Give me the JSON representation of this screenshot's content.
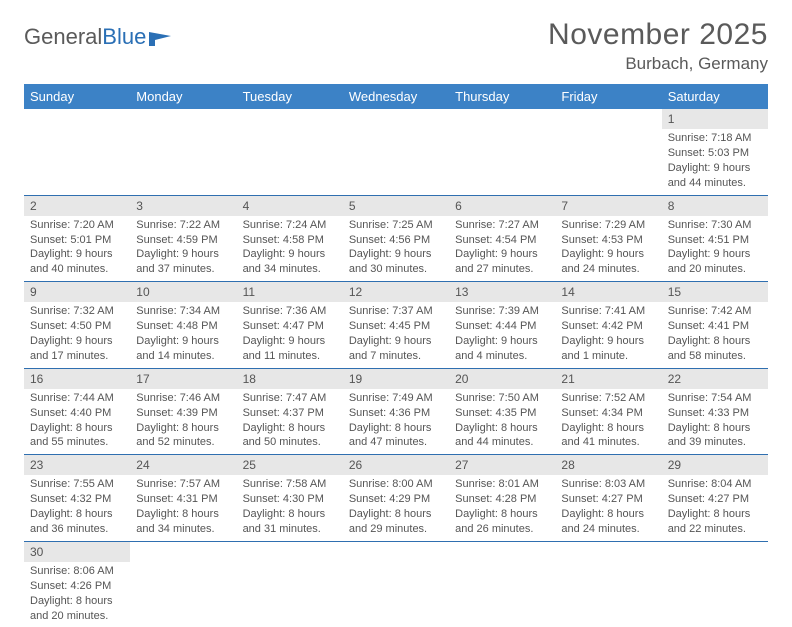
{
  "logo": {
    "text1": "General",
    "text2": "Blue"
  },
  "title": "November 2025",
  "subtitle": "Burbach, Germany",
  "colors": {
    "header_bg": "#3c82c6",
    "header_text": "#ffffff",
    "daynum_bg": "#e7e7e7",
    "row_border": "#2f6fb0",
    "text": "#555555",
    "logo_blue": "#2a6fb5"
  },
  "weekdays": [
    "Sunday",
    "Monday",
    "Tuesday",
    "Wednesday",
    "Thursday",
    "Friday",
    "Saturday"
  ],
  "weeks": [
    {
      "days": [
        null,
        null,
        null,
        null,
        null,
        null,
        {
          "num": "1",
          "sunrise": "Sunrise: 7:18 AM",
          "sunset": "Sunset: 5:03 PM",
          "day1": "Daylight: 9 hours",
          "day2": "and 44 minutes."
        }
      ]
    },
    {
      "days": [
        {
          "num": "2",
          "sunrise": "Sunrise: 7:20 AM",
          "sunset": "Sunset: 5:01 PM",
          "day1": "Daylight: 9 hours",
          "day2": "and 40 minutes."
        },
        {
          "num": "3",
          "sunrise": "Sunrise: 7:22 AM",
          "sunset": "Sunset: 4:59 PM",
          "day1": "Daylight: 9 hours",
          "day2": "and 37 minutes."
        },
        {
          "num": "4",
          "sunrise": "Sunrise: 7:24 AM",
          "sunset": "Sunset: 4:58 PM",
          "day1": "Daylight: 9 hours",
          "day2": "and 34 minutes."
        },
        {
          "num": "5",
          "sunrise": "Sunrise: 7:25 AM",
          "sunset": "Sunset: 4:56 PM",
          "day1": "Daylight: 9 hours",
          "day2": "and 30 minutes."
        },
        {
          "num": "6",
          "sunrise": "Sunrise: 7:27 AM",
          "sunset": "Sunset: 4:54 PM",
          "day1": "Daylight: 9 hours",
          "day2": "and 27 minutes."
        },
        {
          "num": "7",
          "sunrise": "Sunrise: 7:29 AM",
          "sunset": "Sunset: 4:53 PM",
          "day1": "Daylight: 9 hours",
          "day2": "and 24 minutes."
        },
        {
          "num": "8",
          "sunrise": "Sunrise: 7:30 AM",
          "sunset": "Sunset: 4:51 PM",
          "day1": "Daylight: 9 hours",
          "day2": "and 20 minutes."
        }
      ]
    },
    {
      "days": [
        {
          "num": "9",
          "sunrise": "Sunrise: 7:32 AM",
          "sunset": "Sunset: 4:50 PM",
          "day1": "Daylight: 9 hours",
          "day2": "and 17 minutes."
        },
        {
          "num": "10",
          "sunrise": "Sunrise: 7:34 AM",
          "sunset": "Sunset: 4:48 PM",
          "day1": "Daylight: 9 hours",
          "day2": "and 14 minutes."
        },
        {
          "num": "11",
          "sunrise": "Sunrise: 7:36 AM",
          "sunset": "Sunset: 4:47 PM",
          "day1": "Daylight: 9 hours",
          "day2": "and 11 minutes."
        },
        {
          "num": "12",
          "sunrise": "Sunrise: 7:37 AM",
          "sunset": "Sunset: 4:45 PM",
          "day1": "Daylight: 9 hours",
          "day2": "and 7 minutes."
        },
        {
          "num": "13",
          "sunrise": "Sunrise: 7:39 AM",
          "sunset": "Sunset: 4:44 PM",
          "day1": "Daylight: 9 hours",
          "day2": "and 4 minutes."
        },
        {
          "num": "14",
          "sunrise": "Sunrise: 7:41 AM",
          "sunset": "Sunset: 4:42 PM",
          "day1": "Daylight: 9 hours",
          "day2": "and 1 minute."
        },
        {
          "num": "15",
          "sunrise": "Sunrise: 7:42 AM",
          "sunset": "Sunset: 4:41 PM",
          "day1": "Daylight: 8 hours",
          "day2": "and 58 minutes."
        }
      ]
    },
    {
      "days": [
        {
          "num": "16",
          "sunrise": "Sunrise: 7:44 AM",
          "sunset": "Sunset: 4:40 PM",
          "day1": "Daylight: 8 hours",
          "day2": "and 55 minutes."
        },
        {
          "num": "17",
          "sunrise": "Sunrise: 7:46 AM",
          "sunset": "Sunset: 4:39 PM",
          "day1": "Daylight: 8 hours",
          "day2": "and 52 minutes."
        },
        {
          "num": "18",
          "sunrise": "Sunrise: 7:47 AM",
          "sunset": "Sunset: 4:37 PM",
          "day1": "Daylight: 8 hours",
          "day2": "and 50 minutes."
        },
        {
          "num": "19",
          "sunrise": "Sunrise: 7:49 AM",
          "sunset": "Sunset: 4:36 PM",
          "day1": "Daylight: 8 hours",
          "day2": "and 47 minutes."
        },
        {
          "num": "20",
          "sunrise": "Sunrise: 7:50 AM",
          "sunset": "Sunset: 4:35 PM",
          "day1": "Daylight: 8 hours",
          "day2": "and 44 minutes."
        },
        {
          "num": "21",
          "sunrise": "Sunrise: 7:52 AM",
          "sunset": "Sunset: 4:34 PM",
          "day1": "Daylight: 8 hours",
          "day2": "and 41 minutes."
        },
        {
          "num": "22",
          "sunrise": "Sunrise: 7:54 AM",
          "sunset": "Sunset: 4:33 PM",
          "day1": "Daylight: 8 hours",
          "day2": "and 39 minutes."
        }
      ]
    },
    {
      "days": [
        {
          "num": "23",
          "sunrise": "Sunrise: 7:55 AM",
          "sunset": "Sunset: 4:32 PM",
          "day1": "Daylight: 8 hours",
          "day2": "and 36 minutes."
        },
        {
          "num": "24",
          "sunrise": "Sunrise: 7:57 AM",
          "sunset": "Sunset: 4:31 PM",
          "day1": "Daylight: 8 hours",
          "day2": "and 34 minutes."
        },
        {
          "num": "25",
          "sunrise": "Sunrise: 7:58 AM",
          "sunset": "Sunset: 4:30 PM",
          "day1": "Daylight: 8 hours",
          "day2": "and 31 minutes."
        },
        {
          "num": "26",
          "sunrise": "Sunrise: 8:00 AM",
          "sunset": "Sunset: 4:29 PM",
          "day1": "Daylight: 8 hours",
          "day2": "and 29 minutes."
        },
        {
          "num": "27",
          "sunrise": "Sunrise: 8:01 AM",
          "sunset": "Sunset: 4:28 PM",
          "day1": "Daylight: 8 hours",
          "day2": "and 26 minutes."
        },
        {
          "num": "28",
          "sunrise": "Sunrise: 8:03 AM",
          "sunset": "Sunset: 4:27 PM",
          "day1": "Daylight: 8 hours",
          "day2": "and 24 minutes."
        },
        {
          "num": "29",
          "sunrise": "Sunrise: 8:04 AM",
          "sunset": "Sunset: 4:27 PM",
          "day1": "Daylight: 8 hours",
          "day2": "and 22 minutes."
        }
      ]
    },
    {
      "days": [
        {
          "num": "30",
          "sunrise": "Sunrise: 8:06 AM",
          "sunset": "Sunset: 4:26 PM",
          "day1": "Daylight: 8 hours",
          "day2": "and 20 minutes."
        },
        null,
        null,
        null,
        null,
        null,
        null
      ]
    }
  ]
}
